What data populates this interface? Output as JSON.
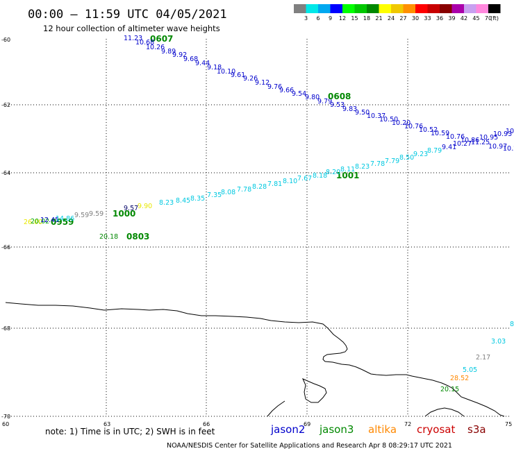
{
  "header": {
    "title": "00:00 – 11:59 UTC 04/05/2021",
    "subtitle": "12 hour collection of altimeter wave heights"
  },
  "colorbar": {
    "unit_label": "(ft)",
    "colors": [
      "#808080",
      "#00e8e8",
      "#00a8f0",
      "#0000ff",
      "#00ff00",
      "#00c800",
      "#008800",
      "#ffff00",
      "#f0c800",
      "#ff9000",
      "#ff0000",
      "#c80000",
      "#880000",
      "#aa00aa",
      "#c8a0f0",
      "#ff88dd",
      "#000000"
    ],
    "labels": [
      "3",
      "6",
      "9",
      "12",
      "15",
      "18",
      "21",
      "24",
      "27",
      "30",
      "33",
      "36",
      "39",
      "42",
      "45",
      "70"
    ]
  },
  "axes": {
    "lat_labels": [
      "-60",
      "-62",
      "-64",
      "-66",
      "-68",
      "-70"
    ],
    "lon_labels": [
      "60",
      "63",
      "66",
      "69",
      "72",
      "75"
    ]
  },
  "tracks": [
    {
      "time": "0607",
      "time_color": "#008800",
      "color": "#0000cc",
      "values": [
        "11.23",
        "10.68",
        "10.26",
        "9.89",
        "9.92",
        "9.68",
        "9.44",
        "9.18",
        "10.10",
        "9.61",
        "9.26",
        "9.12",
        "9.76",
        "9.66",
        "9.54",
        "9.80",
        "9.79",
        "9.53",
        "9.83",
        "9.50",
        "10.37",
        "10.50",
        "10.20",
        "10.76",
        "10.52",
        "10.59",
        "10.76",
        "10.86",
        "10.95",
        "10.97",
        "10.93",
        "10.98"
      ]
    },
    {
      "time": "0608",
      "time_color": "#008800",
      "color": "#0000cc",
      "values": []
    },
    {
      "time": "1001",
      "time_color": "#008800",
      "color": "#00c8e0",
      "values": [
        "9.57",
        "9.90",
        "8.23",
        "8.45",
        "8.35",
        "7.35",
        "8.08",
        "7.78",
        "8.28",
        "7.81",
        "8.10",
        "7.67",
        "8.18",
        "8.20",
        "8.11",
        "8.23",
        "7.78",
        "7.79",
        "8.50",
        "9.23",
        "8.79",
        "9.41",
        "10.27",
        "11.25",
        "10.2"
      ]
    },
    {
      "time": "1000",
      "time_color": "#008800",
      "color": "#00c8e0",
      "values": []
    },
    {
      "time": "0959",
      "time_color": "#008800",
      "color": "#00c8e0",
      "values": [
        "26.00",
        "20.02",
        "12.45",
        "9.59",
        "9.59",
        "14.86"
      ]
    },
    {
      "time": "0803",
      "time_color": "#008800",
      "color": "#008800",
      "values": [
        "20.18"
      ]
    }
  ],
  "southeast_values": [
    "8",
    "3.03",
    "2.17",
    "5.05",
    "28.52",
    "20.15"
  ],
  "footer": {
    "note": "note:  1) Time is in UTC;  2) SWH is in feet",
    "satellites": [
      {
        "name": "jason2",
        "color": "#0000cc"
      },
      {
        "name": "jason3",
        "color": "#008800"
      },
      {
        "name": "altika",
        "color": "#ff8800"
      },
      {
        "name": "cryosat",
        "color": "#cc0000"
      },
      {
        "name": "s3a",
        "color": "#880000"
      }
    ],
    "credit": "NOAA/NESDIS Center for Satellite Applications and Research    Apr  8 08:29:17 UTC 2021"
  }
}
